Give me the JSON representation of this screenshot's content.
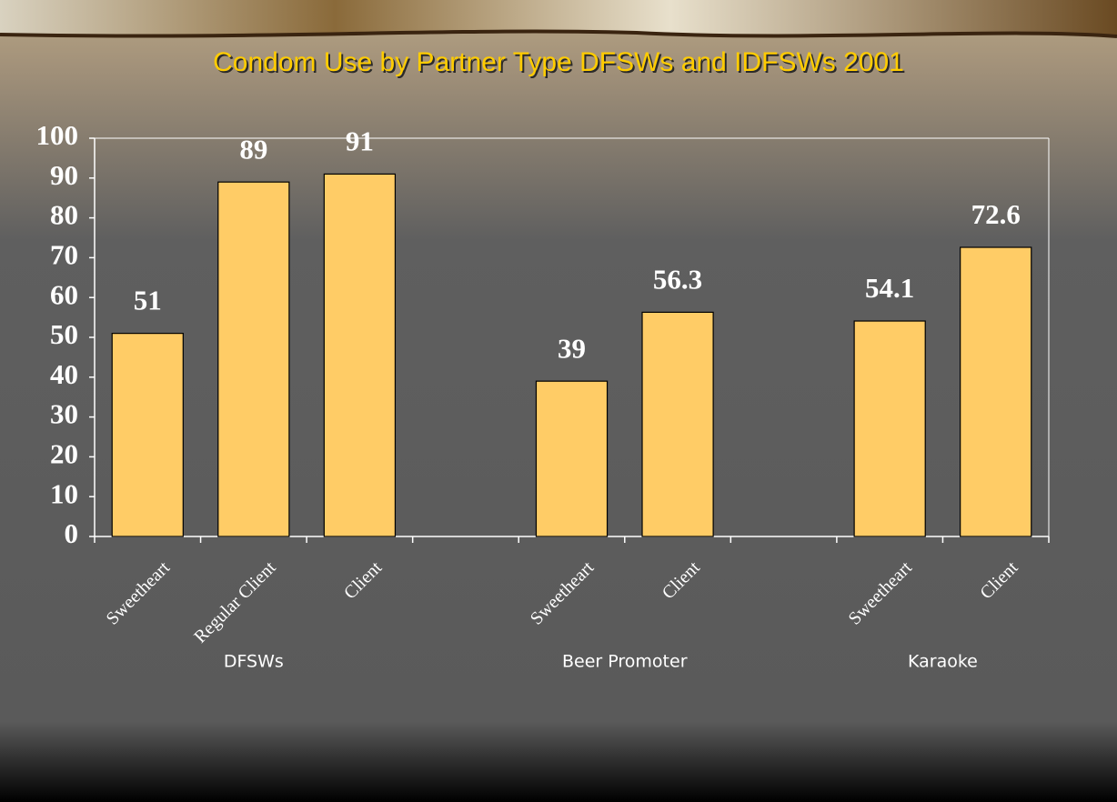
{
  "chart_data": {
    "type": "bar",
    "title": "Condom Use by Partner Type DFSWs and IDFSWs 2001",
    "groups": [
      {
        "name": "DFSWs",
        "categories": [
          "Sweetheart",
          "Regular Client",
          "Client"
        ],
        "values": [
          51,
          89,
          91
        ]
      },
      {
        "name": "Beer Promoter",
        "categories": [
          "Sweetheart",
          "Client"
        ],
        "values": [
          39,
          56.3
        ]
      },
      {
        "name": "Karaoke",
        "categories": [
          "Sweetheart",
          "Client"
        ],
        "values": [
          54.1,
          72.6
        ]
      }
    ],
    "color": "#ffcc66",
    "ylim": [
      0,
      100
    ],
    "yticks": [
      0,
      10,
      20,
      30,
      40,
      50,
      60,
      70,
      80,
      90,
      100
    ],
    "grid": false
  }
}
